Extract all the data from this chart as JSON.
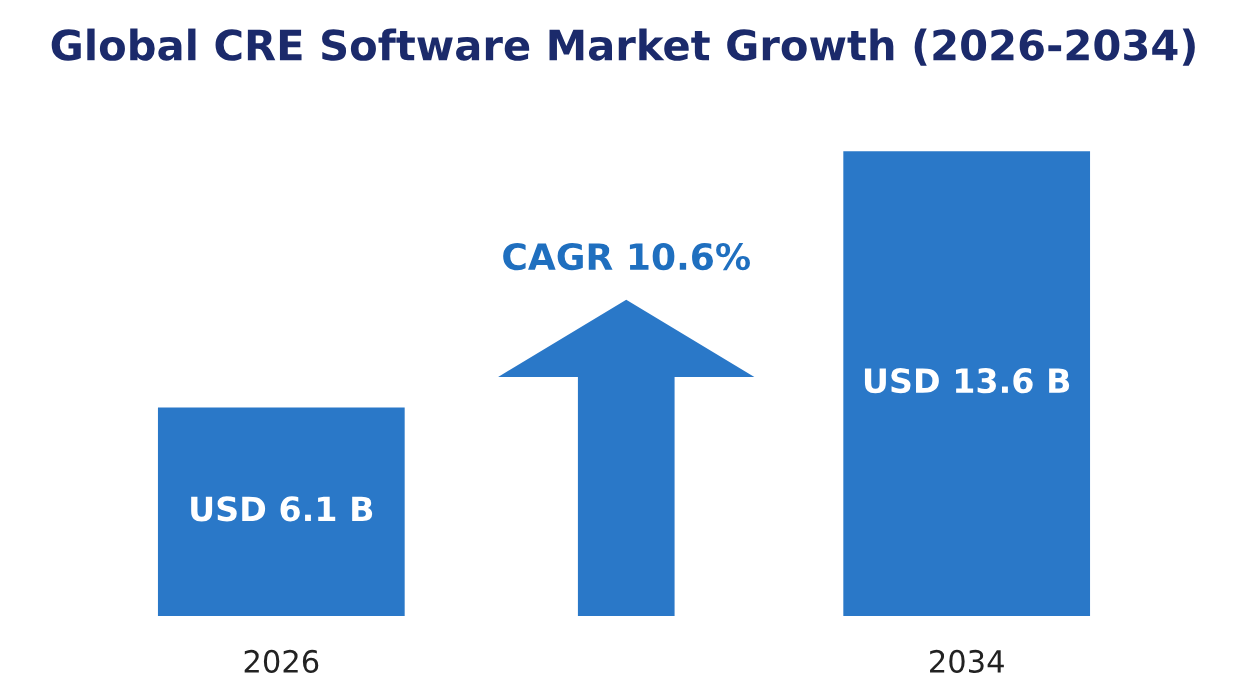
{
  "chart_data": {
    "type": "bar",
    "title": "Global CRE Software Market Growth (2026-2034)",
    "categories": [
      "2026",
      "2034"
    ],
    "values": [
      6.1,
      13.6
    ],
    "value_labels": [
      "USD 6.1 B",
      "USD 13.6 B"
    ],
    "color": "#2a78c8",
    "grid": false,
    "legend": false,
    "annotations": [
      "CAGR 10.6%"
    ]
  }
}
